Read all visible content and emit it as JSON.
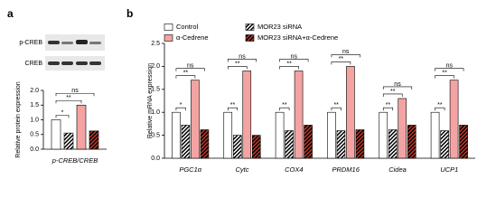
{
  "chart_data": [
    {
      "type": "bar",
      "panel": "a",
      "blot_rows": [
        "p-CREB",
        "CREB"
      ],
      "ylabel": "Relative protein expression",
      "categories": [
        "p-CREB/CREB"
      ],
      "series": [
        {
          "color": "#ffffff",
          "values": [
            1.0
          ]
        },
        {
          "color": "#000000",
          "pattern": "stripes",
          "values": [
            0.55
          ]
        },
        {
          "color": "#f4a3a3",
          "values": [
            1.5
          ]
        },
        {
          "color": "#c0392b",
          "pattern": "stripes",
          "values": [
            0.62
          ]
        }
      ],
      "significance": [
        [
          "*",
          "**",
          "ns"
        ]
      ],
      "ylim": [
        0,
        2.0
      ],
      "yticks": [
        {
          "value": 0,
          "label": "0.0"
        },
        {
          "value": 0.5,
          "label": "0.5"
        },
        {
          "value": 1.0,
          "label": "1.0"
        },
        {
          "value": 1.5,
          "label": "1.5"
        },
        {
          "value": 2.0,
          "label": "2.0"
        }
      ]
    },
    {
      "type": "bar",
      "panel": "b",
      "ylabel": "Relative mRNA expression",
      "categories": [
        "PGC1α",
        "Cytc",
        "COX4",
        "PRDM16",
        "Cidea",
        "UCP1"
      ],
      "series": [
        {
          "name": "Control",
          "color": "#ffffff",
          "values": [
            1.0,
            1.0,
            1.0,
            1.0,
            1.0,
            1.0
          ]
        },
        {
          "name": "MOR23 siRNA",
          "color": "#000000",
          "pattern": "stripes",
          "values": [
            0.72,
            0.5,
            0.6,
            0.6,
            0.62,
            0.6
          ]
        },
        {
          "name": "α-Cedrene",
          "color": "#f4a3a3",
          "values": [
            1.7,
            1.9,
            1.9,
            2.0,
            1.3,
            1.7
          ]
        },
        {
          "name": "MOR23 siRNA+α-Cedrene",
          "color": "#c0392b",
          "pattern": "stripes",
          "values": [
            0.62,
            0.5,
            0.72,
            0.62,
            0.72,
            0.72
          ]
        }
      ],
      "significance": [
        [
          "*",
          "**",
          "ns"
        ],
        [
          "**",
          "**",
          "ns"
        ],
        [
          "**",
          "**",
          "ns"
        ],
        [
          "**",
          "**",
          "ns"
        ],
        [
          "**",
          "**",
          "ns"
        ],
        [
          "**",
          "**",
          "ns"
        ]
      ],
      "ylim": [
        0,
        2.5
      ],
      "yticks": [
        {
          "value": 0,
          "label": "0.0"
        },
        {
          "value": 0.5,
          "label": "0.5"
        },
        {
          "value": 1.0,
          "label": "1.0"
        },
        {
          "value": 1.5,
          "label": "1.5"
        },
        {
          "value": 2.0,
          "label": "2.0"
        },
        {
          "value": 2.5,
          "label": "2.5"
        }
      ]
    }
  ]
}
